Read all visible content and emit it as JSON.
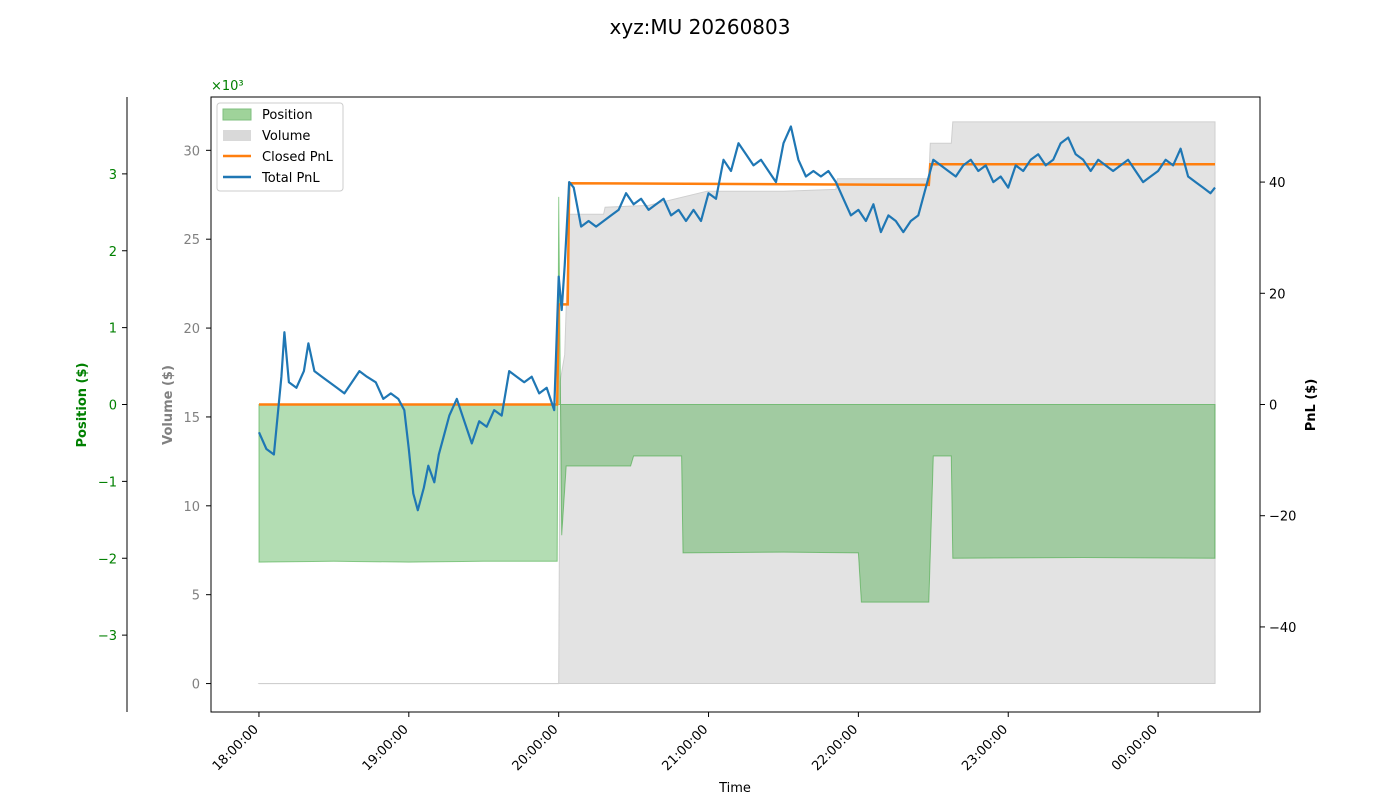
{
  "chart_data": {
    "type": "area",
    "title": "xyz:MU 20260803",
    "xlabel": "Time",
    "x_ticks": [
      "18:00:00",
      "19:00:00",
      "20:00:00",
      "21:00:00",
      "22:00:00",
      "23:00:00",
      "00:00:00"
    ],
    "x_range_hours": [
      17.68,
      24.68
    ],
    "axes": {
      "position": {
        "label": "Position ($)",
        "color": "#008000",
        "multiplier_label": "×10³",
        "ticks": [
          -3,
          -2,
          -1,
          0,
          1,
          2,
          3
        ],
        "tick_labels": [
          "−3",
          "−2",
          "−1",
          "0",
          "1",
          "2",
          "3"
        ],
        "range": [
          -4.0,
          4.0
        ]
      },
      "volume": {
        "label": "Volume ($)",
        "color": "#808080",
        "ticks": [
          0,
          5,
          10,
          15,
          20,
          25,
          30
        ],
        "tick_labels": [
          "0",
          "5",
          "10",
          "15",
          "20",
          "25",
          "30"
        ],
        "range": [
          -1.6,
          33.0
        ]
      },
      "pnl": {
        "label": "PnL ($)",
        "color": "#000000",
        "ticks": [
          -40,
          -20,
          0,
          20,
          40
        ],
        "tick_labels": [
          "−40",
          "−20",
          "0",
          "20",
          "40"
        ],
        "range": [
          -55.3,
          55.3
        ]
      }
    },
    "legend": {
      "placement": "top-left",
      "entries": [
        {
          "label": "Position",
          "kind": "patch",
          "color": "#9fd39a"
        },
        {
          "label": "Volume",
          "kind": "patch",
          "color": "#d9d9d9"
        },
        {
          "label": "Closed PnL",
          "kind": "line",
          "color": "#ff7f0e"
        },
        {
          "label": "Total PnL",
          "kind": "line",
          "color": "#1f77b4"
        }
      ]
    },
    "series": {
      "position": {
        "name": "Position",
        "color": "#2ca02c",
        "points": [
          [
            18.0,
            -2.05
          ],
          [
            18.5,
            -2.04
          ],
          [
            19.0,
            -2.05
          ],
          [
            19.5,
            -2.04
          ],
          [
            19.99,
            -2.04
          ],
          [
            20.0,
            2.7
          ],
          [
            20.02,
            -1.7
          ],
          [
            20.05,
            -0.8
          ],
          [
            20.3,
            -0.8
          ],
          [
            20.48,
            -0.8
          ],
          [
            20.5,
            -0.67
          ],
          [
            20.82,
            -0.67
          ],
          [
            20.83,
            -1.93
          ],
          [
            21.5,
            -1.92
          ],
          [
            22.0,
            -1.93
          ],
          [
            22.02,
            -2.57
          ],
          [
            22.47,
            -2.57
          ],
          [
            22.5,
            -0.67
          ],
          [
            22.62,
            -0.67
          ],
          [
            22.63,
            -2.0
          ],
          [
            23.5,
            -1.99
          ],
          [
            24.38,
            -2.0
          ]
        ]
      },
      "volume": {
        "name": "Volume",
        "color": "#d9d9d9",
        "points": [
          [
            18.0,
            0.0
          ],
          [
            20.0,
            0.0
          ],
          [
            20.01,
            17.0
          ],
          [
            20.04,
            18.5
          ],
          [
            20.07,
            26.4
          ],
          [
            20.3,
            26.4
          ],
          [
            20.31,
            26.8
          ],
          [
            20.6,
            26.9
          ],
          [
            20.99,
            27.7
          ],
          [
            21.5,
            27.7
          ],
          [
            21.85,
            27.8
          ],
          [
            21.86,
            28.4
          ],
          [
            22.47,
            28.4
          ],
          [
            22.48,
            30.4
          ],
          [
            22.62,
            30.4
          ],
          [
            22.63,
            31.6
          ],
          [
            24.38,
            31.6
          ]
        ]
      },
      "closed_pnl": {
        "name": "Closed PnL",
        "color": "#ff7f0e",
        "points": [
          [
            18.0,
            0.0
          ],
          [
            19.99,
            0.0
          ],
          [
            20.0,
            18.0
          ],
          [
            20.06,
            18.0
          ],
          [
            20.07,
            39.8
          ],
          [
            22.47,
            39.5
          ],
          [
            22.48,
            43.2
          ],
          [
            24.38,
            43.2
          ]
        ]
      },
      "total_pnl": {
        "name": "Total PnL",
        "color": "#1f77b4",
        "points": [
          [
            18.0,
            -5
          ],
          [
            18.05,
            -8
          ],
          [
            18.1,
            -9
          ],
          [
            18.15,
            5
          ],
          [
            18.17,
            13
          ],
          [
            18.2,
            4
          ],
          [
            18.25,
            3
          ],
          [
            18.3,
            6
          ],
          [
            18.33,
            11
          ],
          [
            18.37,
            6
          ],
          [
            18.42,
            5
          ],
          [
            18.47,
            4
          ],
          [
            18.52,
            3
          ],
          [
            18.57,
            2
          ],
          [
            18.62,
            4
          ],
          [
            18.67,
            6
          ],
          [
            18.72,
            5
          ],
          [
            18.78,
            4
          ],
          [
            18.83,
            1
          ],
          [
            18.88,
            2
          ],
          [
            18.93,
            1
          ],
          [
            18.97,
            -1
          ],
          [
            19.0,
            -8
          ],
          [
            19.03,
            -16
          ],
          [
            19.06,
            -19
          ],
          [
            19.1,
            -15
          ],
          [
            19.13,
            -11
          ],
          [
            19.17,
            -14
          ],
          [
            19.2,
            -9
          ],
          [
            19.23,
            -6
          ],
          [
            19.27,
            -2
          ],
          [
            19.32,
            1
          ],
          [
            19.37,
            -3
          ],
          [
            19.42,
            -7
          ],
          [
            19.47,
            -3
          ],
          [
            19.52,
            -4
          ],
          [
            19.57,
            -1
          ],
          [
            19.62,
            -2
          ],
          [
            19.67,
            6
          ],
          [
            19.72,
            5
          ],
          [
            19.77,
            4
          ],
          [
            19.82,
            5
          ],
          [
            19.87,
            2
          ],
          [
            19.92,
            3
          ],
          [
            19.97,
            -1
          ],
          [
            20.0,
            23
          ],
          [
            20.02,
            17
          ],
          [
            20.04,
            25
          ],
          [
            20.07,
            40
          ],
          [
            20.1,
            39
          ],
          [
            20.15,
            32
          ],
          [
            20.2,
            33
          ],
          [
            20.25,
            32
          ],
          [
            20.3,
            33
          ],
          [
            20.35,
            34
          ],
          [
            20.4,
            35
          ],
          [
            20.45,
            38
          ],
          [
            20.5,
            36
          ],
          [
            20.55,
            37
          ],
          [
            20.6,
            35
          ],
          [
            20.65,
            36
          ],
          [
            20.7,
            37
          ],
          [
            20.75,
            34
          ],
          [
            20.8,
            35
          ],
          [
            20.85,
            33
          ],
          [
            20.9,
            35
          ],
          [
            20.95,
            33
          ],
          [
            21.0,
            38
          ],
          [
            21.05,
            37
          ],
          [
            21.1,
            44
          ],
          [
            21.15,
            42
          ],
          [
            21.2,
            47
          ],
          [
            21.25,
            45
          ],
          [
            21.3,
            43
          ],
          [
            21.35,
            44
          ],
          [
            21.4,
            42
          ],
          [
            21.45,
            40
          ],
          [
            21.5,
            47
          ],
          [
            21.55,
            50
          ],
          [
            21.6,
            44
          ],
          [
            21.65,
            41
          ],
          [
            21.7,
            42
          ],
          [
            21.75,
            41
          ],
          [
            21.8,
            42
          ],
          [
            21.85,
            40
          ],
          [
            21.9,
            37
          ],
          [
            21.95,
            34
          ],
          [
            22.0,
            35
          ],
          [
            22.05,
            33
          ],
          [
            22.1,
            36
          ],
          [
            22.15,
            31
          ],
          [
            22.2,
            34
          ],
          [
            22.25,
            33
          ],
          [
            22.3,
            31
          ],
          [
            22.35,
            33
          ],
          [
            22.4,
            34
          ],
          [
            22.45,
            39
          ],
          [
            22.5,
            44
          ],
          [
            22.55,
            43
          ],
          [
            22.6,
            42
          ],
          [
            22.65,
            41
          ],
          [
            22.7,
            43
          ],
          [
            22.75,
            44
          ],
          [
            22.8,
            42
          ],
          [
            22.85,
            43
          ],
          [
            22.9,
            40
          ],
          [
            22.95,
            41
          ],
          [
            23.0,
            39
          ],
          [
            23.05,
            43
          ],
          [
            23.1,
            42
          ],
          [
            23.15,
            44
          ],
          [
            23.2,
            45
          ],
          [
            23.25,
            43
          ],
          [
            23.3,
            44
          ],
          [
            23.35,
            47
          ],
          [
            23.4,
            48
          ],
          [
            23.45,
            45
          ],
          [
            23.5,
            44
          ],
          [
            23.55,
            42
          ],
          [
            23.6,
            44
          ],
          [
            23.65,
            43
          ],
          [
            23.7,
            42
          ],
          [
            23.75,
            43
          ],
          [
            23.8,
            44
          ],
          [
            23.85,
            42
          ],
          [
            23.9,
            40
          ],
          [
            23.95,
            41
          ],
          [
            24.0,
            42
          ],
          [
            24.05,
            44
          ],
          [
            24.1,
            43
          ],
          [
            24.15,
            46
          ],
          [
            24.2,
            41
          ],
          [
            24.25,
            40
          ],
          [
            24.3,
            39
          ],
          [
            24.35,
            38
          ],
          [
            24.38,
            39
          ]
        ]
      }
    }
  }
}
